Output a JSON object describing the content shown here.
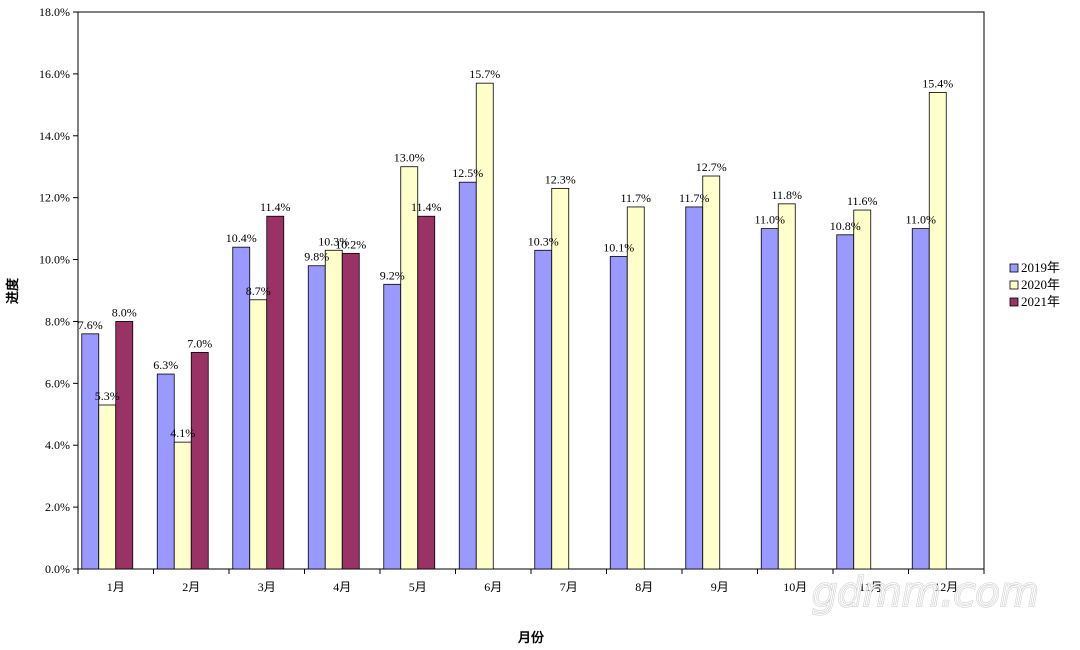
{
  "chart_data": {
    "type": "bar",
    "categories": [
      "1月",
      "2月",
      "3月",
      "4月",
      "5月",
      "6月",
      "7月",
      "8月",
      "9月",
      "10月",
      "11月",
      "12月"
    ],
    "series": [
      {
        "name": "2019年",
        "color": "#9999ff",
        "values": [
          7.6,
          6.3,
          10.4,
          9.8,
          9.2,
          12.5,
          10.3,
          10.1,
          11.7,
          11.0,
          10.8,
          11.0
        ],
        "labels": [
          "7.6%",
          "6.3%",
          "10.4%",
          "9.8%",
          "9.2%",
          "12.5%",
          "10.3%",
          "10.1%",
          "11.7%",
          "11.0%",
          "10.8%",
          "11.0%"
        ]
      },
      {
        "name": "2020年",
        "color": "#ffffcc",
        "values": [
          5.3,
          4.1,
          8.7,
          10.3,
          13.0,
          15.7,
          12.3,
          11.7,
          12.7,
          11.8,
          11.6,
          15.4
        ],
        "labels": [
          "5.3%",
          "4.1%",
          "8.7%",
          "10.3%",
          "13.0%",
          "15.7%",
          "12.3%",
          "11.7%",
          "12.7%",
          "11.8%",
          "11.6%",
          "15.4%"
        ]
      },
      {
        "name": "2021年",
        "color": "#993366",
        "values": [
          8.0,
          7.0,
          11.4,
          10.2,
          11.4,
          null,
          null,
          null,
          null,
          null,
          null,
          null
        ],
        "labels": [
          "8.0%",
          "7.0%",
          "11.4%",
          "10.2%",
          "11.4%",
          null,
          null,
          null,
          null,
          null,
          null,
          null
        ]
      }
    ],
    "xlabel": "月份",
    "ylabel": "进度",
    "ylim": [
      0,
      18
    ],
    "ytick_step": 2,
    "ytick_labels": [
      "0.0%",
      "2.0%",
      "4.0%",
      "6.0%",
      "8.0%",
      "10.0%",
      "12.0%",
      "14.0%",
      "16.0%",
      "18.0%"
    ],
    "grid": false,
    "legend": "right"
  },
  "watermark": "gdmm.com"
}
